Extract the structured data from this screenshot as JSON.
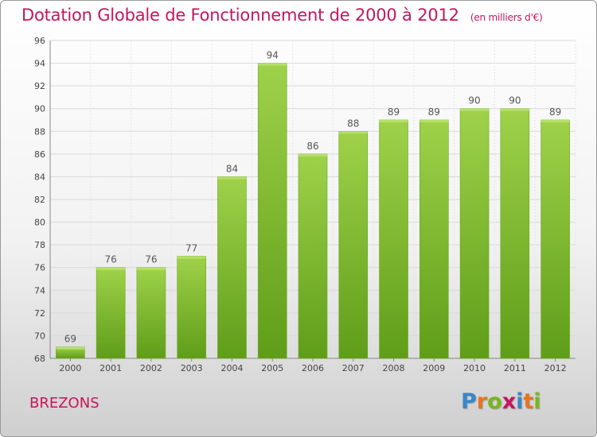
{
  "title": "Dotation Globale de Fonctionnement de 2000 à 2012",
  "unit_note": "(en milliers d'€)",
  "location": "BREZONS",
  "logo": {
    "text": "Proxiti",
    "letters": [
      {
        "ch": "P",
        "color": "#3a87c8"
      },
      {
        "ch": "r",
        "color": "#e8731f"
      },
      {
        "ch": "o",
        "color": "#7ab51d"
      },
      {
        "ch": "x",
        "color": "#c4165e"
      },
      {
        "ch": "i",
        "color": "#3a87c8"
      },
      {
        "ch": "t",
        "color": "#e8731f"
      },
      {
        "ch": "i",
        "color": "#7ab51d"
      }
    ]
  },
  "chart_data": {
    "type": "bar",
    "categories": [
      "2000",
      "2001",
      "2002",
      "2003",
      "2004",
      "2005",
      "2006",
      "2007",
      "2008",
      "2009",
      "2010",
      "2011",
      "2012"
    ],
    "values": [
      69,
      76,
      76,
      77,
      84,
      94,
      86,
      88,
      89,
      89,
      90,
      90,
      89
    ],
    "ylim": [
      68,
      96
    ],
    "yticks": [
      68,
      70,
      72,
      74,
      76,
      78,
      80,
      82,
      84,
      86,
      88,
      90,
      92,
      94,
      96
    ],
    "grid": true,
    "bar_color": "#7fbf2a",
    "bar_color_dark": "#5c9a17",
    "label_color": "#555555"
  }
}
